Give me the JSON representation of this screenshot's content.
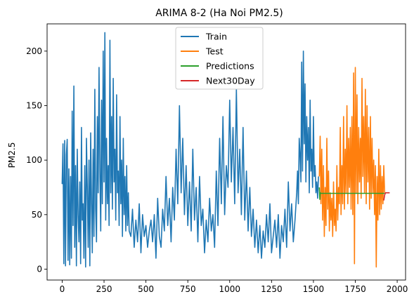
{
  "chart_data": {
    "type": "line",
    "title": "ARIMA 8-2 (Ha Noi PM2.5)",
    "xlabel": "",
    "ylabel": "PM2.5",
    "xlim": [
      -90,
      2050
    ],
    "ylim": [
      -10,
      225
    ],
    "xticks": [
      0,
      250,
      500,
      750,
      1000,
      1250,
      1500,
      1750,
      2000
    ],
    "yticks": [
      0,
      50,
      100,
      150,
      200
    ],
    "grid": false,
    "legend_position": "top-center",
    "series": [
      {
        "name": "Train",
        "color": "#1f77b4",
        "x": [
          0,
          5,
          10,
          15,
          20,
          25,
          30,
          35,
          40,
          45,
          50,
          55,
          60,
          65,
          70,
          75,
          80,
          85,
          90,
          95,
          100,
          105,
          110,
          115,
          120,
          125,
          130,
          135,
          140,
          145,
          150,
          155,
          160,
          165,
          170,
          175,
          180,
          185,
          190,
          195,
          200,
          205,
          210,
          215,
          220,
          225,
          230,
          235,
          240,
          245,
          250,
          255,
          260,
          265,
          270,
          275,
          280,
          285,
          290,
          295,
          300,
          305,
          310,
          315,
          320,
          325,
          330,
          335,
          340,
          345,
          350,
          355,
          360,
          365,
          370,
          375,
          380,
          385,
          390,
          395,
          400,
          410,
          420,
          430,
          440,
          450,
          460,
          470,
          480,
          490,
          500,
          510,
          520,
          530,
          540,
          550,
          560,
          570,
          580,
          590,
          600,
          610,
          620,
          630,
          640,
          650,
          660,
          670,
          680,
          690,
          700,
          710,
          720,
          730,
          740,
          750,
          760,
          770,
          780,
          790,
          800,
          810,
          820,
          830,
          840,
          850,
          860,
          870,
          880,
          890,
          900,
          910,
          920,
          930,
          940,
          950,
          960,
          970,
          980,
          990,
          1000,
          1010,
          1020,
          1030,
          1040,
          1050,
          1060,
          1070,
          1080,
          1090,
          1100,
          1110,
          1120,
          1130,
          1140,
          1150,
          1160,
          1170,
          1180,
          1190,
          1200,
          1210,
          1220,
          1230,
          1240,
          1250,
          1260,
          1270,
          1280,
          1290,
          1300,
          1310,
          1320,
          1330,
          1340,
          1350,
          1360,
          1370,
          1380,
          1390,
          1400,
          1405,
          1410,
          1415,
          1420,
          1425,
          1430,
          1435,
          1440,
          1445,
          1450,
          1455,
          1460,
          1465,
          1470,
          1475,
          1480,
          1485,
          1490,
          1495,
          1500,
          1505,
          1510,
          1515,
          1520,
          1525,
          1530
        ],
        "y": [
          78,
          115,
          5,
          118,
          3,
          105,
          119,
          8,
          92,
          4,
          85,
          10,
          145,
          40,
          168,
          20,
          95,
          3,
          110,
          50,
          25,
          80,
          5,
          130,
          45,
          60,
          10,
          95,
          2,
          120,
          75,
          20,
          100,
          3,
          125,
          60,
          15,
          110,
          30,
          165,
          55,
          25,
          140,
          70,
          185,
          90,
          35,
          155,
          60,
          200,
          80,
          217,
          45,
          120,
          60,
          95,
          40,
          210,
          70,
          140,
          55,
          175,
          80,
          110,
          45,
          160,
          70,
          90,
          40,
          140,
          60,
          100,
          30,
          120,
          50,
          85,
          35,
          95,
          40,
          70,
          35,
          30,
          55,
          20,
          45,
          25,
          60,
          15,
          50,
          30,
          40,
          20,
          35,
          45,
          25,
          50,
          10,
          65,
          30,
          20,
          55,
          35,
          85,
          40,
          65,
          25,
          75,
          45,
          110,
          60,
          150,
          70,
          120,
          50,
          95,
          40,
          80,
          35,
          110,
          45,
          75,
          25,
          85,
          40,
          55,
          15,
          45,
          25,
          65,
          35,
          50,
          20,
          90,
          40,
          120,
          60,
          140,
          50,
          95,
          75,
          155,
          80,
          130,
          60,
          165,
          70,
          110,
          50,
          130,
          45,
          90,
          35,
          75,
          30,
          55,
          20,
          45,
          15,
          40,
          10,
          35,
          20,
          50,
          25,
          60,
          15,
          30,
          45,
          20,
          50,
          10,
          40,
          25,
          55,
          20,
          80,
          35,
          60,
          25,
          45,
          70,
          90,
          60,
          120,
          105,
          80,
          190,
          90,
          200,
          115,
          170,
          80,
          140,
          100,
          130,
          70,
          155,
          90,
          110,
          75,
          140,
          85,
          95,
          70,
          80,
          65,
          85
        ]
      },
      {
        "name": "Test",
        "color": "#ff7f0e",
        "x": [
          1535,
          1540,
          1545,
          1550,
          1555,
          1560,
          1565,
          1570,
          1575,
          1580,
          1585,
          1590,
          1595,
          1600,
          1605,
          1610,
          1615,
          1620,
          1625,
          1630,
          1635,
          1640,
          1645,
          1650,
          1655,
          1660,
          1665,
          1670,
          1675,
          1680,
          1685,
          1690,
          1695,
          1700,
          1705,
          1710,
          1715,
          1720,
          1725,
          1730,
          1735,
          1740,
          1745,
          1750,
          1755,
          1760,
          1765,
          1770,
          1775,
          1780,
          1785,
          1790,
          1795,
          1800,
          1805,
          1810,
          1815,
          1820,
          1825,
          1830,
          1835,
          1840,
          1845,
          1850,
          1855,
          1860,
          1865,
          1870,
          1875,
          1880,
          1885,
          1890,
          1895,
          1900,
          1905,
          1910,
          1915,
          1920,
          1925
        ],
        "y": [
          85,
          122,
          60,
          110,
          45,
          95,
          30,
          75,
          40,
          120,
          55,
          90,
          35,
          70,
          45,
          65,
          30,
          80,
          40,
          55,
          35,
          95,
          45,
          75,
          60,
          130,
          50,
          95,
          60,
          140,
          55,
          110,
          70,
          150,
          60,
          120,
          75,
          130,
          55,
          140,
          50,
          180,
          5,
          185,
          70,
          160,
          60,
          130,
          80,
          120,
          65,
          175,
          85,
          140,
          70,
          165,
          60,
          150,
          80,
          130,
          55,
          140,
          65,
          120,
          70,
          100,
          50,
          95,
          2,
          85,
          45,
          110,
          50,
          95,
          55,
          85,
          60,
          95,
          70
        ]
      },
      {
        "name": "Predictions",
        "color": "#2ca02c",
        "x": [
          1535,
          1538,
          1540,
          1545,
          1925
        ],
        "y": [
          75,
          64,
          70,
          69.5,
          69.5
        ]
      },
      {
        "name": "Next30Day",
        "color": "#d62728",
        "x": [
          1920,
          1925,
          1930,
          1935,
          1940,
          1945,
          1950,
          1955
        ],
        "y": [
          63,
          68,
          70,
          70,
          70,
          70,
          70,
          70
        ]
      }
    ]
  }
}
